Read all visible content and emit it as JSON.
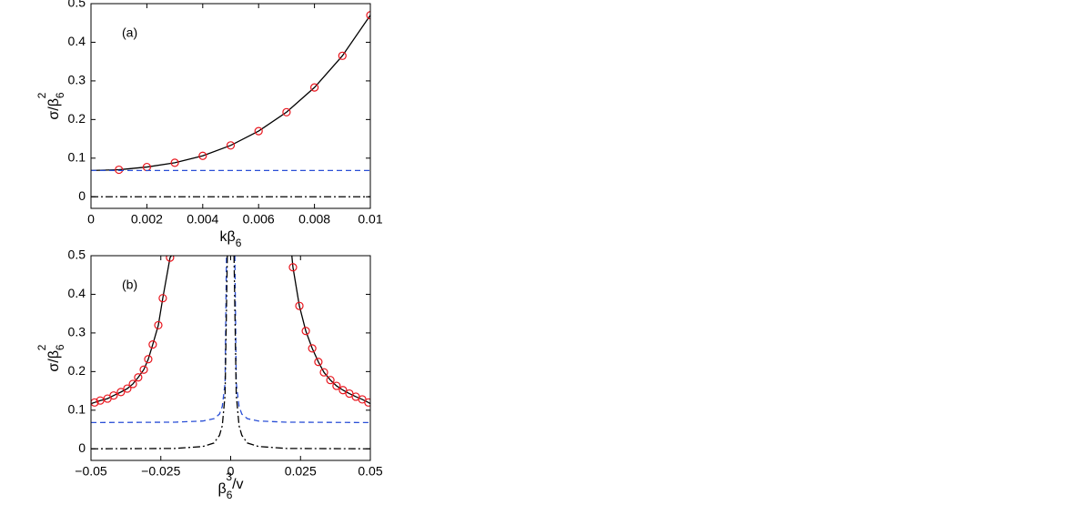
{
  "chart_data": [
    {
      "type": "line",
      "annotation": "(a)",
      "xlabel": {
        "text": "kβ",
        "sub": "6"
      },
      "ylabel": {
        "text": "σ/β",
        "sub": "6",
        "sup": "2"
      },
      "xlim": [
        0,
        0.01
      ],
      "ylim": [
        -0.03,
        0.5
      ],
      "xticks": [
        0,
        0.002,
        0.004,
        0.006,
        0.008,
        0.01
      ],
      "yticks": [
        0,
        0.1,
        0.2,
        0.3,
        0.4,
        0.5
      ],
      "series": [
        {
          "style": "solid",
          "color": "#000000",
          "x": [
            0,
            0.001,
            0.002,
            0.003,
            0.004,
            0.005,
            0.006,
            0.007,
            0.008,
            0.009,
            0.01
          ],
          "values": [
            0.068,
            0.07,
            0.077,
            0.088,
            0.106,
            0.133,
            0.17,
            0.219,
            0.283,
            0.365,
            0.47
          ]
        },
        {
          "style": "markers",
          "color": "#e8141c",
          "x": [
            0.001,
            0.002,
            0.003,
            0.004,
            0.005,
            0.006,
            0.007,
            0.008,
            0.009,
            0.01
          ],
          "values": [
            0.07,
            0.077,
            0.088,
            0.106,
            0.133,
            0.17,
            0.219,
            0.283,
            0.365,
            0.47
          ]
        },
        {
          "style": "dashed",
          "color": "#2a4fd6",
          "x": [
            0,
            0.01
          ],
          "values": [
            0.068,
            0.068
          ]
        },
        {
          "style": "dashdot",
          "color": "#000000",
          "x": [
            0,
            0.01
          ],
          "values": [
            0,
            0
          ]
        }
      ]
    },
    {
      "type": "line",
      "annotation": "(b)",
      "xlabel": {
        "text": "β",
        "sub": "6",
        "sup": "3",
        "tail": "/v"
      },
      "ylabel": {
        "text": "σ/β",
        "sub": "6",
        "sup": "2"
      },
      "xlim": [
        -0.05,
        0.05
      ],
      "ylim": [
        -0.03,
        0.5
      ],
      "xticks": [
        {
          "value": -0.05,
          "label": "−0.05"
        },
        {
          "value": -0.025,
          "label": "−0.025"
        },
        0,
        0.025,
        0.05
      ],
      "yticks": [
        0,
        0.1,
        0.2,
        0.3,
        0.4,
        0.5
      ],
      "series": [
        {
          "style": "solid",
          "color": "#000000",
          "x": [
            -0.05,
            -0.0487,
            -0.0467,
            -0.0441,
            -0.0419,
            -0.0393,
            -0.037,
            -0.035,
            -0.0331,
            -0.0311,
            -0.0295,
            -0.0279,
            -0.0259,
            -0.0243,
            -0.0217,
            -0.0212,
            0,
            0.0219,
            0.0223,
            0.0246,
            0.0269,
            0.0292,
            0.0314,
            0.0334,
            0.0357,
            0.0379,
            0.0402,
            0.0425,
            0.0448,
            0.0471,
            0.0493,
            0.05
          ],
          "values": [
            0.117,
            0.12,
            0.125,
            0.13,
            0.138,
            0.147,
            0.156,
            0.168,
            0.185,
            0.205,
            0.232,
            0.27,
            0.32,
            0.39,
            0.495,
            0.5,
            null,
            0.5,
            0.47,
            0.37,
            0.305,
            0.26,
            0.225,
            0.198,
            0.178,
            0.163,
            0.152,
            0.143,
            0.135,
            0.128,
            0.12,
            0.117
          ]
        },
        {
          "style": "markers",
          "color": "#e8141c",
          "x": [
            -0.0487,
            -0.0467,
            -0.0441,
            -0.0419,
            -0.0393,
            -0.037,
            -0.035,
            -0.0331,
            -0.0311,
            -0.0295,
            -0.0279,
            -0.0259,
            -0.0243,
            -0.0217,
            0.0223,
            0.0246,
            0.0269,
            0.0292,
            0.0314,
            0.0334,
            0.0357,
            0.0379,
            0.0402,
            0.0425,
            0.0448,
            0.0471,
            0.0493
          ],
          "values": [
            0.12,
            0.125,
            0.13,
            0.138,
            0.147,
            0.156,
            0.168,
            0.185,
            0.205,
            0.232,
            0.27,
            0.32,
            0.39,
            0.495,
            0.47,
            0.37,
            0.305,
            0.26,
            0.225,
            0.198,
            0.178,
            0.163,
            0.152,
            0.143,
            0.135,
            0.128,
            0.12
          ]
        },
        {
          "style": "dashed",
          "color": "#2a4fd6",
          "x": [
            -0.05,
            -0.02,
            -0.01,
            -0.006,
            -0.004,
            -0.003,
            -0.002,
            -0.0015,
            0,
            0.0015,
            0.002,
            0.003,
            0.004,
            0.006,
            0.01,
            0.02,
            0.05
          ],
          "values": [
            0.068,
            0.069,
            0.072,
            0.078,
            0.09,
            0.11,
            0.17,
            0.5,
            null,
            0.5,
            0.17,
            0.11,
            0.09,
            0.078,
            0.072,
            0.069,
            0.068
          ]
        },
        {
          "style": "dashdot",
          "color": "#000000",
          "x": [
            -0.05,
            -0.02,
            -0.01,
            -0.006,
            -0.004,
            -0.003,
            -0.002,
            -0.0012,
            0,
            0.0012,
            0.002,
            0.003,
            0.004,
            0.006,
            0.01,
            0.02,
            0.05
          ],
          "values": [
            0,
            0.001,
            0.006,
            0.015,
            0.035,
            0.06,
            0.14,
            0.5,
            null,
            0.5,
            0.14,
            0.06,
            0.035,
            0.015,
            0.006,
            0.001,
            0
          ]
        }
      ]
    }
  ]
}
